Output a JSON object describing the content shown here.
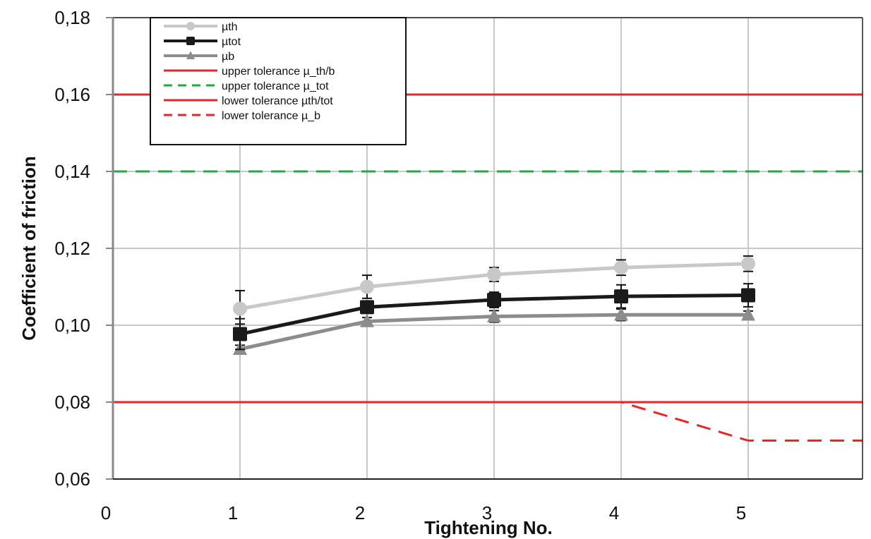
{
  "chart_data": {
    "type": "line",
    "xlabel": "Tightening No.",
    "ylabel": "Coefficient of friction",
    "xlim": [
      0,
      5.9
    ],
    "ylim": [
      0.06,
      0.18
    ],
    "x_ticks": [
      "0",
      "1",
      "2",
      "3",
      "4",
      "5"
    ],
    "y_ticks": [
      "0,06",
      "0,08",
      "0,10",
      "0,12",
      "0,14",
      "0,16",
      "0,18"
    ],
    "grid": true,
    "legend_position": "top-left",
    "series": [
      {
        "name": "µth",
        "x": [
          1,
          2,
          3,
          4,
          5
        ],
        "values": [
          0.1043,
          0.11,
          0.1132,
          0.115,
          0.116
        ],
        "error_plus": [
          0.0047,
          0.003,
          0.0018,
          0.002,
          0.002
        ],
        "error_minus": [
          0.004,
          0.003,
          0.0018,
          0.002,
          0.002
        ],
        "color": "#c8c8c8",
        "marker": "circle",
        "style": "solid"
      },
      {
        "name": "µtot",
        "x": [
          1,
          2,
          3,
          4,
          5
        ],
        "values": [
          0.0977,
          0.1047,
          0.1066,
          0.1075,
          0.1078
        ],
        "error_plus": [
          0.004,
          0.0015,
          0.002,
          0.003,
          0.003
        ],
        "error_minus": [
          0.004,
          0.0015,
          0.002,
          0.003,
          0.003
        ],
        "color": "#1a1a1a",
        "marker": "square",
        "style": "solid"
      },
      {
        "name": "µb",
        "x": [
          1,
          2,
          3,
          4,
          5
        ],
        "values": [
          0.0938,
          0.101,
          0.1023,
          0.1027,
          0.1027
        ],
        "error_plus": [
          0.001,
          0.001,
          0.0015,
          0.0015,
          0.001
        ],
        "error_minus": [
          0.001,
          0.001,
          0.0015,
          0.0015,
          0.001
        ],
        "color": "#8c8c8c",
        "marker": "triangle",
        "style": "solid"
      },
      {
        "name": "upper tolerance µ_th/b",
        "x": [
          0,
          5.9
        ],
        "values": [
          0.16,
          0.16
        ],
        "color": "#e8262a",
        "style": "solid"
      },
      {
        "name": "upper tolerance µ_tot",
        "x": [
          0,
          5.9
        ],
        "values": [
          0.14,
          0.14
        ],
        "color": "#22aa44",
        "style": "dashed"
      },
      {
        "name": "lower tolerance µth/tot",
        "x": [
          0,
          5.9
        ],
        "values": [
          0.08,
          0.08
        ],
        "color": "#e8262a",
        "style": "solid"
      },
      {
        "name": "lower tolerance µ_b",
        "x": [
          0,
          4,
          5,
          5.9
        ],
        "values": [
          0.08,
          0.08,
          0.07,
          0.07
        ],
        "color": "#e8262a",
        "style": "dashed"
      }
    ]
  }
}
